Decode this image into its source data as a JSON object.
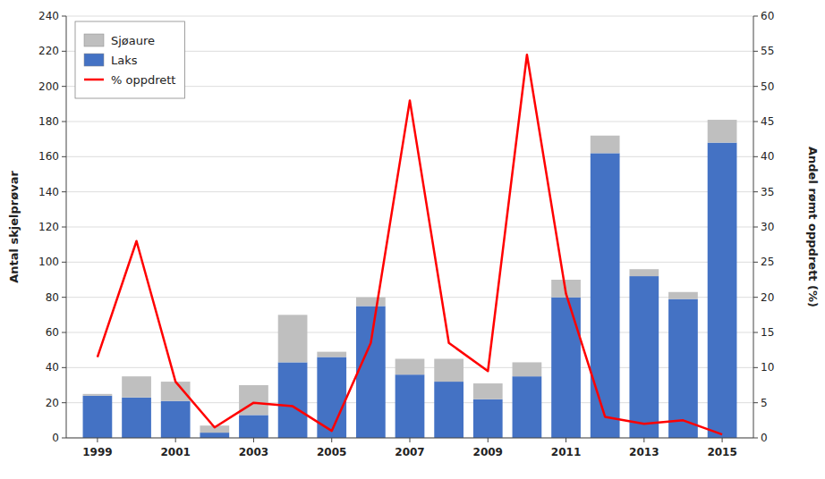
{
  "chart_data": {
    "type": "bar",
    "stacked": true,
    "x": [
      1999,
      2000,
      2001,
      2002,
      2003,
      2004,
      2005,
      2006,
      2007,
      2008,
      2009,
      2010,
      2011,
      2012,
      2013,
      2014,
      2015
    ],
    "xlim": [
      1998.2,
      2015.8
    ],
    "xticks": [
      1999,
      2001,
      2003,
      2005,
      2007,
      2009,
      2011,
      2013,
      2015
    ],
    "ylabel": "Antal skjelprøvar",
    "ylim": [
      0,
      240
    ],
    "yticks": [
      0,
      20,
      40,
      60,
      80,
      100,
      120,
      140,
      160,
      180,
      200,
      220,
      240
    ],
    "y2label": "Andel rømt oppdrett (%)",
    "y2lim": [
      0,
      60
    ],
    "y2ticks": [
      0,
      5,
      10,
      15,
      20,
      25,
      30,
      35,
      40,
      45,
      50,
      55,
      60
    ],
    "grid": true,
    "legend": "upper left",
    "series": [
      {
        "name": "Laks",
        "color": "#4472C4",
        "values": [
          24,
          23,
          21,
          3,
          13,
          43,
          46,
          75,
          36,
          32,
          22,
          35,
          80,
          162,
          92,
          79,
          168
        ]
      },
      {
        "name": "Sjøaure",
        "color": "#BFBFBF",
        "values": [
          1,
          12,
          11,
          4,
          17,
          27,
          3,
          5,
          9,
          13,
          9,
          8,
          10,
          10,
          4,
          4,
          13
        ]
      },
      {
        "name": "% oppdrett",
        "type": "line",
        "axis": "y2",
        "color": "#FF0000",
        "values": [
          11.5,
          28,
          8,
          1.5,
          5,
          4.5,
          1,
          13.5,
          48,
          13.5,
          9.5,
          54.5,
          20.5,
          3,
          2,
          2.5,
          0.5
        ]
      }
    ]
  }
}
